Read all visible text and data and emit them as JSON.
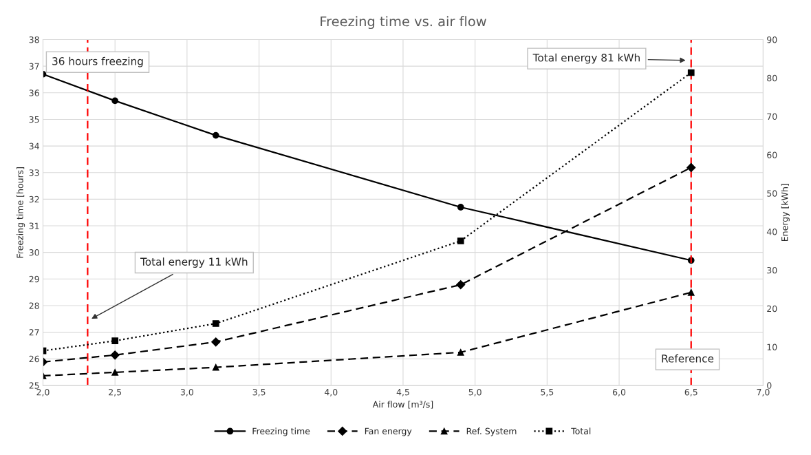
{
  "chart_data": {
    "type": "line",
    "title": "Freezing time vs. air flow",
    "xlabel": "Air flow [m³/s]",
    "ylabel": "Freezing time [hours]",
    "y2label": "Energy [kWh]",
    "x": [
      2.0,
      2.5,
      3.2,
      4.9,
      6.5
    ],
    "series": [
      {
        "name": "Freezing time",
        "color": "#000000",
        "values": [
          36.7,
          35.7,
          34.4,
          31.7,
          29.7
        ],
        "marker": "circle",
        "line_style": "solid"
      },
      {
        "name": "Fan energy",
        "color": "#000000",
        "values": [
          6.1,
          7.9,
          11.3,
          26.2,
          56.7
        ],
        "marker": "diamond",
        "line_style": "dashed",
        "axis": "y2"
      },
      {
        "name": "Ref. System",
        "color": "#000000",
        "values": [
          2.5,
          3.4,
          4.7,
          8.6,
          24.2
        ],
        "marker": "triangle",
        "line_style": "dashed",
        "axis": "y2"
      },
      {
        "name": "Total",
        "color": "#000000",
        "values": [
          9.0,
          11.6,
          16.1,
          37.6,
          81.4
        ],
        "marker": "square",
        "line_style": "dotted",
        "axis": "y2"
      }
    ],
    "xlim": [
      2.0,
      7.0
    ],
    "xticks": [
      {
        "value": 2.0,
        "label": "2,0"
      },
      {
        "value": 2.5,
        "label": "2,5"
      },
      {
        "value": 3.0,
        "label": "3,0"
      },
      {
        "value": 3.5,
        "label": "3,5"
      },
      {
        "value": 4.0,
        "label": "4,0"
      },
      {
        "value": 4.5,
        "label": "4,5"
      },
      {
        "value": 5.0,
        "label": "5,0"
      },
      {
        "value": 5.5,
        "label": "5,5"
      },
      {
        "value": 6.0,
        "label": "6,0"
      },
      {
        "value": 6.5,
        "label": "6,5"
      },
      {
        "value": 7.0,
        "label": "7,0"
      }
    ],
    "ylim": [
      25,
      38
    ],
    "yticks": [
      25,
      26,
      27,
      28,
      29,
      30,
      31,
      32,
      33,
      34,
      35,
      36,
      37,
      38
    ],
    "y2lim": [
      0,
      90
    ],
    "y2ticks": [
      0,
      10,
      20,
      30,
      40,
      50,
      60,
      70,
      80,
      90
    ],
    "ref_lines": [
      {
        "axis": "x",
        "value": 2.31,
        "label": "36 hours freezing",
        "color": "#ff0000",
        "line_style": "dashed"
      },
      {
        "axis": "x",
        "value": 6.5,
        "label": "Reference",
        "color": "#ff0000",
        "line_style": "dashed"
      }
    ],
    "annotations": [
      "Total energy 11 kWh",
      "Total energy 81 kWh"
    ],
    "grid": true,
    "legend": "bottom"
  }
}
